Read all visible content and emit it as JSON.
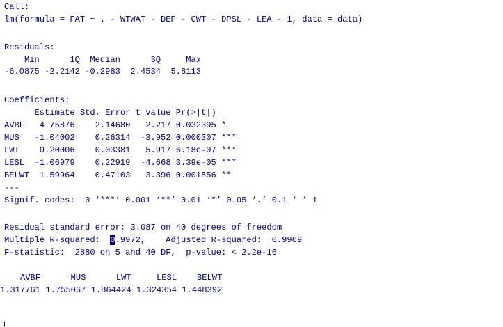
{
  "console": {
    "call": {
      "header": "Call:",
      "formula": "lm(formula = FAT ~ . - WTWAT - DEP - CWT - DPSL - LEA - 1, data = data)"
    },
    "residuals": {
      "header": "Residuals:",
      "names": "    Min      1Q  Median      3Q     Max ",
      "values": "-6.0875 -2.2142 -0.2983  2.4534  5.8113 "
    },
    "coefficients": {
      "header": "Coefficients:",
      "columns": "      Estimate Std. Error t value Pr(>|t|)    ",
      "rows": [
        "AVBF   4.75876    2.14680   2.217 0.032395 *  ",
        "MUS   -1.04002    0.26314  -3.952 0.000307 ***",
        "LWT    0.20006    0.03381   5.917 6.18e-07 ***",
        "LESL  -1.06979    0.22919  -4.668 3.39e-05 ***",
        "BELWT  1.59964    0.47103   3.396 0.001556 ** "
      ],
      "separator": "---",
      "signif": "Signif. codes:  0 ‘***’ 0.001 ‘**’ 0.01 ‘*’ 0.05 ‘.’ 0.1 ‘ ’ 1"
    },
    "fit": {
      "rse": "Residual standard error: 3.087 on 40 degrees of freedom",
      "r2_prefix": "Multiple R-squared:  ",
      "r2_cursor_char": "0",
      "r2_rest": ".9972,\tAdjusted R-squared:  0.9969 ",
      "fstat": "F-statistic:  2880 on 5 and 40 DF,  p-value: < 2.2e-16"
    },
    "vif": {
      "names": "    AVBF      MUS      LWT     LESL    BELWT ",
      "values": "1.317761 1.755067 1.864424 1.324354 1.448392 "
    }
  }
}
